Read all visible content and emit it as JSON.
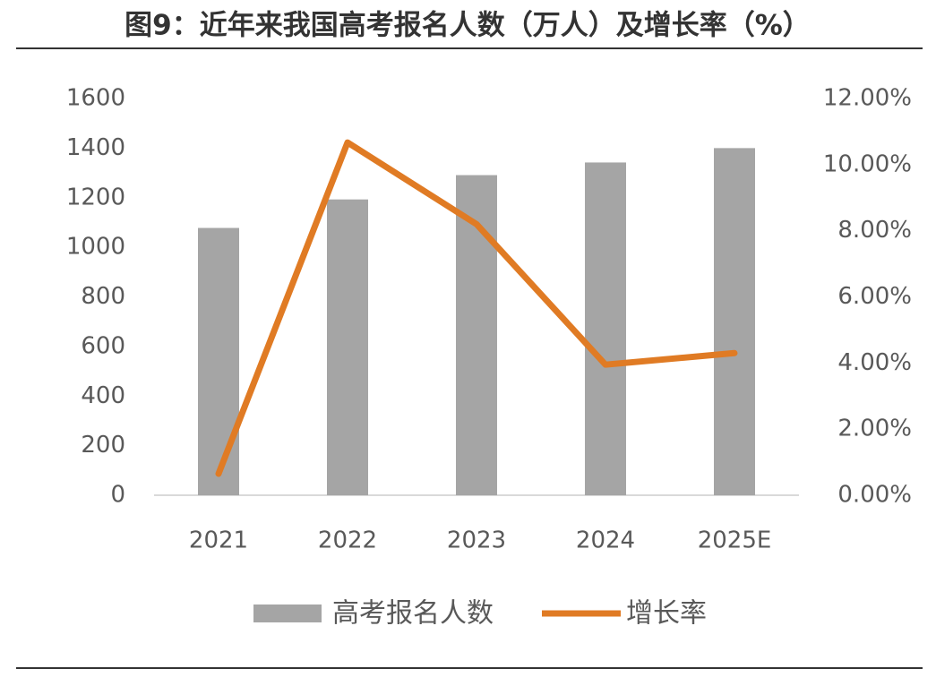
{
  "chart_data": {
    "type": "bar-line",
    "title": "图9：近年来我国高考报名人数（万人）及增长率（%）",
    "categories": [
      "2021",
      "2022",
      "2023",
      "2024",
      "2025E"
    ],
    "series": [
      {
        "name": "高考报名人数",
        "color": "#a5a5a5",
        "type": "bar",
        "values": [
          1078,
          1193,
          1291,
          1342,
          1400
        ]
      },
      {
        "name": "增长率",
        "color": "#e07b24",
        "type": "line",
        "axis": "y2",
        "values": [
          0.65,
          10.67,
          8.2,
          3.95,
          4.3
        ]
      }
    ],
    "ylim": [
      0,
      1600
    ],
    "yticks": [
      0,
      200,
      400,
      600,
      800,
      1000,
      1200,
      1400,
      1600
    ],
    "y2lim": [
      0,
      12
    ],
    "y2ticks": [
      {
        "value": 0,
        "label": "0.00%"
      },
      {
        "value": 2,
        "label": "2.00%"
      },
      {
        "value": 4,
        "label": "4.00%"
      },
      {
        "value": 6,
        "label": "6.00%"
      },
      {
        "value": 8,
        "label": "8.00%"
      },
      {
        "value": 10,
        "label": "10.00%"
      },
      {
        "value": 12,
        "label": "12.00%"
      }
    ],
    "grid": false,
    "legend": "bottom"
  }
}
